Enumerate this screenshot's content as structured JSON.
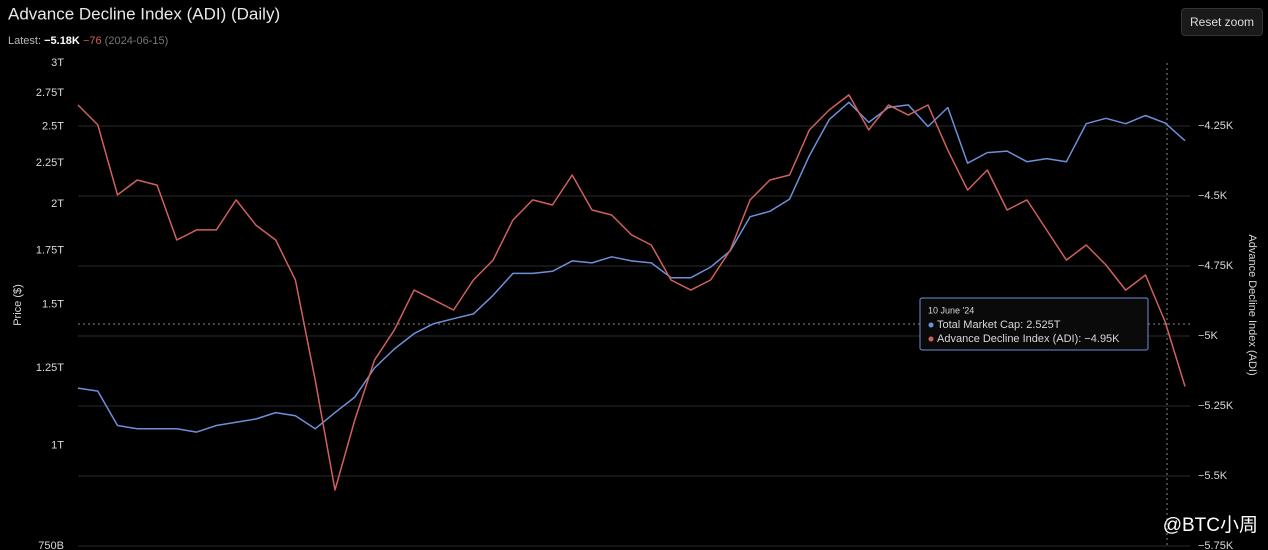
{
  "header": {
    "title": "Advance Decline Index (ADI) (Daily)",
    "latest_label": "Latest:",
    "latest_value": "−5.18K",
    "latest_change": "−76",
    "latest_date": "(2024-06-15)",
    "reset_button": "Reset zoom"
  },
  "tooltip": {
    "date": "10 June '24",
    "line1": "Total Market Cap: 2.525T",
    "line2": "Advance Decline Index (ADI): −4.95K"
  },
  "watermark": "@BTC小周",
  "chart_data": {
    "type": "line",
    "y_label": "Price ($)",
    "y2_label": "Advance Decline Index (ADI)",
    "log_scale": true,
    "ylim": [
      0.75,
      3
    ],
    "yticks": [
      {
        "value": 0.75,
        "label": "750B"
      },
      {
        "value": 1,
        "label": "1T"
      },
      {
        "value": 1.25,
        "label": "1.25T"
      },
      {
        "value": 1.5,
        "label": "1.5T"
      },
      {
        "value": 1.75,
        "label": "1.75T"
      },
      {
        "value": 2,
        "label": "2T"
      },
      {
        "value": 2.25,
        "label": "2.25T"
      },
      {
        "value": 2.5,
        "label": "2.5T"
      },
      {
        "value": 2.75,
        "label": "2.75T"
      },
      {
        "value": 3,
        "label": "3T"
      }
    ],
    "y2lim": [
      -5750,
      -4025
    ],
    "y2ticks": [
      {
        "value": -4250,
        "label": "−4.25K"
      },
      {
        "value": -4500,
        "label": "−4.5K"
      },
      {
        "value": -4750,
        "label": "−4.75K"
      },
      {
        "value": -5000,
        "label": "−5K"
      },
      {
        "value": -5250,
        "label": "−5.25K"
      },
      {
        "value": -5500,
        "label": "−5.5K"
      },
      {
        "value": -5750,
        "label": "−5.75K"
      }
    ],
    "grid": true,
    "series": [
      {
        "name": "Total Market Cap",
        "color": "#6f8fd8",
        "values": [
          1.18,
          1.17,
          1.06,
          1.05,
          1.05,
          1.05,
          1.04,
          1.06,
          1.07,
          1.08,
          1.1,
          1.09,
          1.05,
          1.1,
          1.15,
          1.25,
          1.32,
          1.38,
          1.42,
          1.44,
          1.46,
          1.54,
          1.64,
          1.64,
          1.65,
          1.7,
          1.69,
          1.72,
          1.7,
          1.69,
          1.62,
          1.62,
          1.67,
          1.75,
          1.93,
          1.96,
          2.03,
          2.3,
          2.55,
          2.68,
          2.53,
          2.64,
          2.66,
          2.5,
          2.64,
          2.25,
          2.32,
          2.33,
          2.26,
          2.28,
          2.26,
          2.52,
          2.56,
          2.52,
          2.58,
          2.525,
          2.4
        ]
      },
      {
        "name": "Advance Decline Index (ADI)",
        "color": "#d0605e",
        "axis": "y2",
        "values": [
          -4175,
          -4246,
          -4496,
          -4443,
          -4461,
          -4657,
          -4621,
          -4621,
          -4514,
          -4604,
          -4657,
          -4800,
          -5157,
          -5550,
          -5300,
          -5086,
          -4979,
          -4836,
          -4871,
          -4907,
          -4800,
          -4729,
          -4586,
          -4514,
          -4532,
          -4425,
          -4550,
          -4568,
          -4639,
          -4675,
          -4800,
          -4836,
          -4800,
          -4693,
          -4514,
          -4443,
          -4425,
          -4264,
          -4193,
          -4139,
          -4264,
          -4175,
          -4211,
          -4175,
          -4336,
          -4479,
          -4407,
          -4550,
          -4514,
          -4621,
          -4729,
          -4675,
          -4746,
          -4836,
          -4782,
          -4950,
          -5180
        ]
      }
    ]
  }
}
